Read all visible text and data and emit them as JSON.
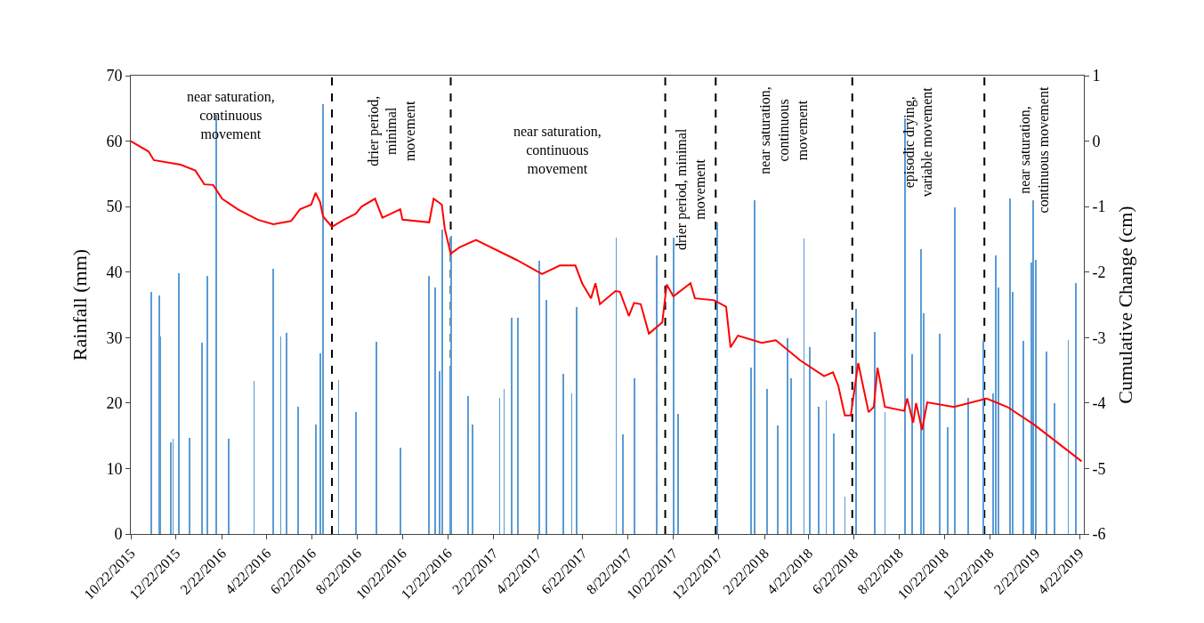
{
  "chart_data": {
    "type": "bar",
    "xlim": [
      "2015-10-22",
      "2019-04-28"
    ],
    "xticks": [
      {
        "value": "2015-10-22",
        "label": "10/22/2015"
      },
      {
        "value": "2015-12-22",
        "label": "12/22/2015"
      },
      {
        "value": "2016-02-22",
        "label": "2/22/2016"
      },
      {
        "value": "2016-04-22",
        "label": "4/22/2016"
      },
      {
        "value": "2016-06-22",
        "label": "6/22/2016"
      },
      {
        "value": "2016-08-22",
        "label": "8/22/2016"
      },
      {
        "value": "2016-10-22",
        "label": "10/22/2016"
      },
      {
        "value": "2016-12-22",
        "label": "12/22/2016"
      },
      {
        "value": "2017-02-22",
        "label": "2/22/2017"
      },
      {
        "value": "2017-04-22",
        "label": "4/22/2017"
      },
      {
        "value": "2017-06-22",
        "label": "6/22/2017"
      },
      {
        "value": "2017-08-22",
        "label": "8/22/2017"
      },
      {
        "value": "2017-10-22",
        "label": "10/22/2017"
      },
      {
        "value": "2017-12-22",
        "label": "12/22/2017"
      },
      {
        "value": "2018-02-22",
        "label": "2/22/2018"
      },
      {
        "value": "2018-04-22",
        "label": "4/22/2018"
      },
      {
        "value": "2018-06-22",
        "label": "6/22/2018"
      },
      {
        "value": "2018-08-22",
        "label": "8/22/2018"
      },
      {
        "value": "2018-10-22",
        "label": "10/22/2018"
      },
      {
        "value": "2018-12-22",
        "label": "12/22/2018"
      },
      {
        "value": "2019-02-22",
        "label": "2/22/2019"
      },
      {
        "value": "2019-04-22",
        "label": "4/22/2019"
      }
    ],
    "ylabel": "Rainfall (mm)",
    "ylim": [
      0,
      70
    ],
    "yticks": [
      0,
      10,
      20,
      30,
      40,
      50,
      60,
      70
    ],
    "y2label": "Cumulative Change (cm)",
    "y2lim": [
      -6,
      1
    ],
    "y2ticks": [
      -6,
      -5,
      -4,
      -3,
      -2,
      -1,
      0,
      1
    ],
    "series": [
      {
        "color": "#5b9bd5",
        "x": [
          "2015-11-19",
          "2015-11-29",
          "2015-12-01",
          "2015-12-15",
          "2015-12-18",
          "2015-12-26",
          "2016-01-09",
          "2016-01-26",
          "2016-02-02",
          "2016-02-14",
          "2016-03-02",
          "2016-04-05",
          "2016-05-01",
          "2016-05-11",
          "2016-05-19",
          "2016-06-03",
          "2016-06-27",
          "2016-07-03",
          "2016-07-07",
          "2016-07-28",
          "2016-08-20",
          "2016-09-17",
          "2016-10-19",
          "2016-11-27",
          "2016-12-05",
          "2016-12-11",
          "2016-12-15",
          "2016-12-25",
          "2016-12-27",
          "2017-01-18",
          "2017-01-24",
          "2017-03-02",
          "2017-03-08",
          "2017-03-18",
          "2017-03-27",
          "2017-04-24",
          "2017-05-04",
          "2017-05-27",
          "2017-06-07",
          "2017-06-14",
          "2017-08-06",
          "2017-08-15",
          "2017-08-31",
          "2017-09-30",
          "2017-10-22",
          "2017-10-28",
          "2017-12-20",
          "2018-02-04",
          "2018-02-08",
          "2018-02-25",
          "2018-03-12",
          "2018-03-25",
          "2018-03-30",
          "2018-04-16",
          "2018-04-24",
          "2018-05-06",
          "2018-05-16",
          "2018-05-26",
          "2018-06-10",
          "2018-06-25",
          "2018-07-20",
          "2018-08-03",
          "2018-08-30",
          "2018-09-09",
          "2018-09-21",
          "2018-09-24",
          "2018-10-16",
          "2018-10-27",
          "2018-11-05",
          "2018-11-23",
          "2018-12-14",
          "2018-12-27",
          "2018-12-30",
          "2019-01-03",
          "2019-01-18",
          "2019-01-22",
          "2019-02-05",
          "2019-02-16",
          "2019-02-19",
          "2019-02-22",
          "2019-03-09",
          "2019-03-19",
          "2019-04-07",
          "2019-04-17"
        ],
        "values": [
          37.0,
          36.4,
          30.2,
          14.0,
          14.5,
          39.8,
          14.7,
          29.2,
          39.4,
          64,
          14.5,
          23.4,
          40.5,
          30.2,
          30.7,
          19.4,
          16.7,
          27.6,
          65.7,
          23.5,
          18.6,
          29.4,
          13.2,
          39.4,
          37.6,
          24.9,
          46.5,
          25.4,
          45.5,
          21.1,
          16.7,
          20.8,
          22.2,
          33.0,
          33.0,
          41.7,
          35.7,
          24.5,
          21.5,
          34.7,
          45.3,
          15.2,
          23.8,
          42.5,
          45.3,
          18.3,
          47.6,
          25.4,
          51.0,
          22.2,
          16.6,
          29.9,
          23.8,
          45.1,
          28.5,
          19.4,
          20.4,
          15.4,
          5.7,
          34.4,
          30.9,
          18.6,
          63.5,
          27.5,
          43.5,
          33.7,
          30.6,
          16.3,
          49.9,
          20.8,
          29.6,
          21.5,
          42.5,
          37.6,
          51.2,
          37.0,
          29.5,
          41.5,
          51.0,
          41.9,
          27.9,
          20.0,
          29.6,
          38.3
        ]
      },
      {
        "type": "line",
        "axis": "y2",
        "color": "#ff0000",
        "line_style": "solid",
        "marker": "none",
        "x": [
          "2015-10-22",
          "2015-11-15",
          "2015-11-22",
          "2015-12-28",
          "2016-01-17",
          "2016-01-29",
          "2016-02-10",
          "2016-02-22",
          "2016-03-14",
          "2016-04-10",
          "2016-05-01",
          "2016-05-25",
          "2016-06-06",
          "2016-06-21",
          "2016-06-27",
          "2016-07-03",
          "2016-07-07",
          "2016-07-19",
          "2016-08-04",
          "2016-08-20",
          "2016-08-28",
          "2016-09-15",
          "2016-09-25",
          "2016-10-19",
          "2016-10-22",
          "2016-11-27",
          "2016-12-03",
          "2016-12-14",
          "2016-12-18",
          "2016-12-26",
          "2017-01-07",
          "2017-01-29",
          "2017-03-24",
          "2017-04-28",
          "2017-05-22",
          "2017-06-12",
          "2017-06-21",
          "2017-07-03",
          "2017-07-09",
          "2017-07-15",
          "2017-08-05",
          "2017-08-11",
          "2017-08-23",
          "2017-08-30",
          "2017-09-08",
          "2017-09-19",
          "2017-10-07",
          "2017-10-13",
          "2017-10-22",
          "2017-11-14",
          "2017-11-20",
          "2017-12-16",
          "2018-01-01",
          "2018-01-07",
          "2018-01-17",
          "2018-02-18",
          "2018-03-09",
          "2018-04-11",
          "2018-05-13",
          "2018-05-25",
          "2018-06-01",
          "2018-06-10",
          "2018-06-18",
          "2018-06-28",
          "2018-07-12",
          "2018-07-19",
          "2018-07-24",
          "2018-08-03",
          "2018-08-29",
          "2018-09-02",
          "2018-09-10",
          "2018-09-14",
          "2018-09-22",
          "2018-09-29",
          "2018-11-04",
          "2018-12-18",
          "2019-01-15",
          "2019-02-20",
          "2019-04-01",
          "2019-04-25"
        ],
        "values": [
          0.0,
          -0.16,
          -0.29,
          -0.36,
          -0.45,
          -0.66,
          -0.67,
          -0.88,
          -1.04,
          -1.2,
          -1.27,
          -1.22,
          -1.04,
          -0.97,
          -0.79,
          -0.93,
          -1.15,
          -1.31,
          -1.2,
          -1.11,
          -1.0,
          -0.88,
          -1.17,
          -1.04,
          -1.2,
          -1.24,
          -0.88,
          -0.97,
          -1.34,
          -1.72,
          -1.62,
          -1.51,
          -1.81,
          -2.03,
          -1.9,
          -1.9,
          -2.17,
          -2.4,
          -2.17,
          -2.49,
          -2.29,
          -2.3,
          -2.67,
          -2.47,
          -2.49,
          -2.94,
          -2.77,
          -2.19,
          -2.37,
          -2.17,
          -2.4,
          -2.43,
          -2.53,
          -3.15,
          -2.97,
          -3.08,
          -3.04,
          -3.35,
          -3.59,
          -3.53,
          -3.73,
          -4.19,
          -4.19,
          -3.39,
          -4.14,
          -4.06,
          -3.46,
          -4.06,
          -4.12,
          -3.93,
          -4.3,
          -4.0,
          -4.41,
          -3.99,
          -4.06,
          -3.93,
          -4.06,
          -4.33,
          -4.68,
          -4.89
        ]
      }
    ],
    "ref_lines": [
      {
        "axis": "x",
        "value": "2016-07-19",
        "color": "#000000",
        "line_style": "dashed"
      },
      {
        "axis": "x",
        "value": "2016-12-26",
        "color": "#000000",
        "line_style": "dashed"
      },
      {
        "axis": "x",
        "value": "2017-10-11",
        "color": "#000000",
        "line_style": "dashed"
      },
      {
        "axis": "x",
        "value": "2017-12-18",
        "color": "#000000",
        "line_style": "dashed"
      },
      {
        "axis": "x",
        "value": "2018-06-20",
        "color": "#000000",
        "line_style": "dashed"
      },
      {
        "axis": "x",
        "value": "2018-12-15",
        "color": "#000000",
        "line_style": "dashed"
      }
    ],
    "annotations": [
      "near saturation,\ncontinuous\nmovement",
      "drier period,\nminimal\nmovement",
      "near saturation,\ncontinuous\nmovement",
      "drier period, minimal\nmovement",
      "near saturation,\ncontinuous\nmovement",
      "episodic drying,\nvariable movement",
      "near saturation,\ncontinuous movement"
    ]
  }
}
